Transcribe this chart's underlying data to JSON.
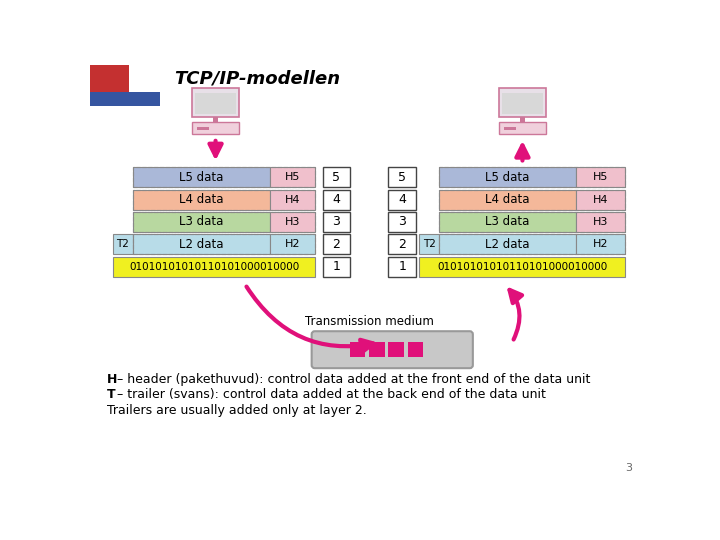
{
  "title": "TCP/IP-modellen",
  "bg_color": "#ffffff",
  "title_color": "#000000",
  "page_number": "3",
  "bits_label": "01010101010110101000010000",
  "transmission_label": "Transmission medium",
  "layer5_color": "#aab8d8",
  "layer4_color": "#f4b89a",
  "layer3_color": "#b8d8a0",
  "layer2_color": "#b8dce8",
  "layer1_color": "#f0f020",
  "header_pink": "#f0c0cc",
  "caption_lines": [
    {
      "bold": "H",
      "rest": " – header (pakethuvud): control data added at the front end of the data unit"
    },
    {
      "bold": "T",
      "rest": " – trailer (svans): control data added at the back end of the data unit"
    },
    {
      "bold": "",
      "rest": "Trailers are usually added only at layer 2."
    }
  ]
}
